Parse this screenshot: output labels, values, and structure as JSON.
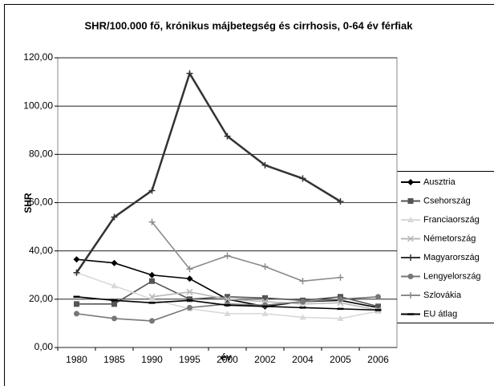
{
  "chart_data": {
    "type": "line",
    "title": "SHR/100.000 fő, krónikus májbetegség és cirrhosis, 0-64 év férfiak",
    "x_label": "év",
    "y_label": "SHR",
    "categories": [
      "1980",
      "1985",
      "1990",
      "1995",
      "2000",
      "2002",
      "2004",
      "2005",
      "2006"
    ],
    "ylim": [
      0,
      120
    ],
    "yticks": [
      {
        "value": 0,
        "label": "0,00"
      },
      {
        "value": 20,
        "label": "20,00"
      },
      {
        "value": 40,
        "label": "40,00"
      },
      {
        "value": 60,
        "label": "60,00"
      },
      {
        "value": 80,
        "label": "80,00"
      },
      {
        "value": 100,
        "label": "100,00"
      },
      {
        "value": 120,
        "label": "120,00"
      }
    ],
    "grid": true,
    "legend": "right",
    "series": [
      {
        "name": "Ausztria",
        "color": "#000000",
        "marker": "diamond",
        "values": [
          36.5,
          35,
          30,
          28.5,
          20,
          17,
          19,
          19.5,
          16.5
        ]
      },
      {
        "name": "Csehország",
        "color": "#555555",
        "marker": "square",
        "values": [
          18,
          18,
          27.5,
          20,
          21,
          20.5,
          19.5,
          21,
          17
        ]
      },
      {
        "name": "Franciaország",
        "color": "#d8d8d8",
        "marker": "triangle",
        "values": [
          31,
          25.5,
          20,
          16,
          14,
          14,
          12.5,
          12,
          15
        ]
      },
      {
        "name": "Németország",
        "color": "#b8b8b8",
        "marker": "x",
        "values": [
          null,
          null,
          21,
          23,
          20,
          19,
          18,
          18.5,
          15.5
        ]
      },
      {
        "name": "Magyarország",
        "color": "#333333",
        "marker": "plus",
        "values": [
          31,
          54,
          65,
          113.5,
          87.5,
          75.5,
          70,
          60.5,
          null
        ]
      },
      {
        "name": "Lengyelország",
        "color": "#777777",
        "marker": "circle",
        "values": [
          14,
          12,
          11,
          16.5,
          18,
          17.5,
          19,
          20,
          21
        ]
      },
      {
        "name": "Szlovákia",
        "color": "#8a8a8a",
        "marker": "plus",
        "values": [
          null,
          null,
          52,
          32.5,
          38,
          33.5,
          27.5,
          29,
          null
        ]
      },
      {
        "name": "EU átlag",
        "color": "#000000",
        "marker": "dash",
        "values": [
          21,
          19.5,
          18.5,
          19.5,
          17.5,
          17,
          16.5,
          16,
          15.5
        ]
      }
    ]
  }
}
